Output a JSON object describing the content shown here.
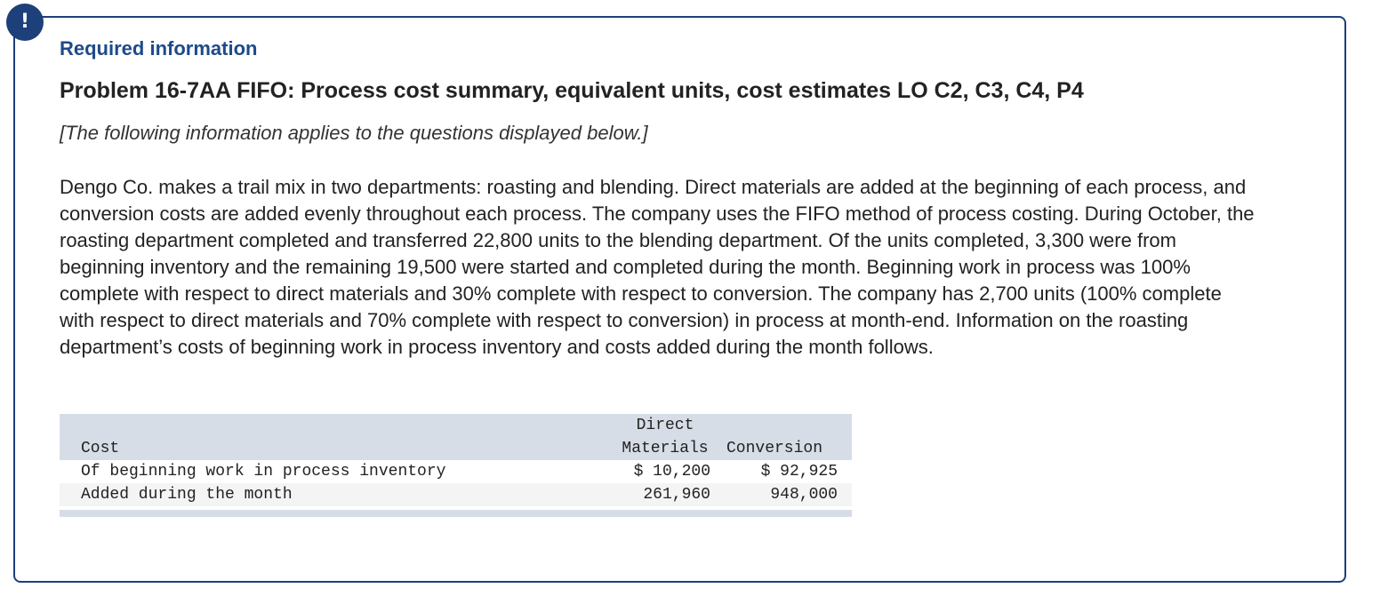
{
  "alert_icon": "!",
  "header": {
    "required_info": "Required information",
    "problem_title": "Problem 16-7AA FIFO: Process cost summary, equivalent units, cost estimates LO C2, C3, C4, P4",
    "applies_note": "[The following information applies to the questions displayed below.]"
  },
  "body": {
    "paragraph": "Dengo Co. makes a trail mix in two departments: roasting and blending. Direct materials are added at the beginning of each process, and conversion costs are added evenly throughout each process. The company uses the FIFO method of process costing. During October, the roasting department completed and transferred 22,800 units to the blending department. Of the units completed, 3,300 were from beginning inventory and the remaining 19,500 were started and completed during the month. Beginning work in process was 100% complete with respect to direct materials and 30% complete with respect to conversion. The company has 2,700 units (100% complete with respect to direct materials and 70% complete with respect to conversion) in process at month-end. Information on the roasting department’s costs of beginning work in process inventory and costs added during the month follows."
  },
  "table": {
    "headers": {
      "label": "Cost",
      "direct_materials_line1": "Direct",
      "direct_materials_line2": "Materials",
      "conversion": "Conversion"
    },
    "rows": [
      {
        "label": "Of beginning work in process inventory",
        "direct_materials": "$ 10,200",
        "conversion": "$ 92,925"
      },
      {
        "label": "Added during the month",
        "direct_materials": "261,960",
        "conversion": "948,000"
      }
    ]
  }
}
